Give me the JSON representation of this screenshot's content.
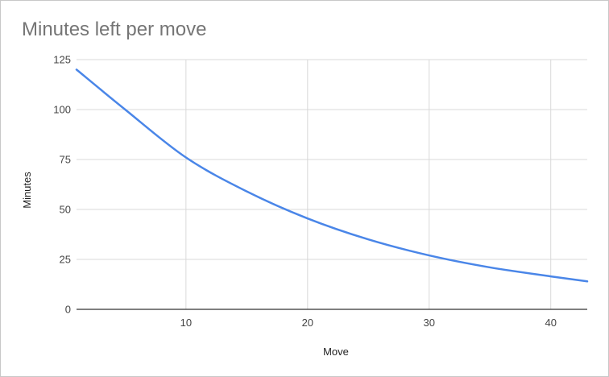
{
  "chart_data": {
    "type": "line",
    "title": "Minutes left per move",
    "xlabel": "Move",
    "ylabel": "Minutes",
    "xlim": [
      1,
      43
    ],
    "ylim": [
      0,
      125
    ],
    "x_ticks": [
      10,
      20,
      30,
      40
    ],
    "y_ticks": [
      0,
      25,
      50,
      75,
      100,
      125
    ],
    "grid": true,
    "legend": "none",
    "series": [
      {
        "color": "#4a86e8",
        "x": [
          1,
          5,
          10,
          15,
          20,
          25,
          30,
          35,
          40,
          43
        ],
        "y": [
          120,
          100,
          76,
          59,
          45.5,
          35,
          27,
          21,
          16.5,
          14
        ]
      }
    ]
  }
}
